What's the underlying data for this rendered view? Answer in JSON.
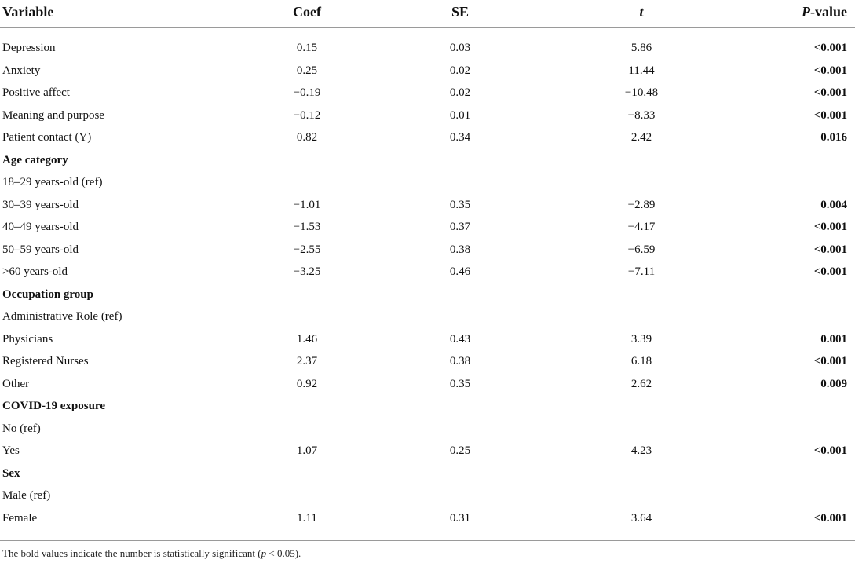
{
  "table": {
    "headers": {
      "variable": "Variable",
      "coef": "Coef",
      "se": "SE",
      "t": "t",
      "p_italic": "P",
      "p_suffix": "-value"
    },
    "rows": [
      {
        "variable": "Depression",
        "coef": "0.15",
        "se": "0.03",
        "t": "5.86",
        "p": "<0.001"
      },
      {
        "variable": "Anxiety",
        "coef": "0.25",
        "se": "0.02",
        "t": "11.44",
        "p": "<0.001"
      },
      {
        "variable": "Positive affect",
        "coef": "−0.19",
        "se": "0.02",
        "t": "−10.48",
        "p": "<0.001"
      },
      {
        "variable": "Meaning and purpose",
        "coef": "−0.12",
        "se": "0.01",
        "t": "−8.33",
        "p": "<0.001"
      },
      {
        "variable": "Patient contact (Y)",
        "coef": "0.82",
        "se": "0.34",
        "t": "2.42",
        "p": "0.016"
      },
      {
        "variable": "Age category",
        "section": true
      },
      {
        "variable": "18–29 years-old (ref)"
      },
      {
        "variable": "30–39 years-old",
        "coef": "−1.01",
        "se": "0.35",
        "t": "−2.89",
        "p": "0.004"
      },
      {
        "variable": "40–49 years-old",
        "coef": "−1.53",
        "se": "0.37",
        "t": "−4.17",
        "p": "<0.001"
      },
      {
        "variable": "50–59 years-old",
        "coef": "−2.55",
        "se": "0.38",
        "t": "−6.59",
        "p": "<0.001"
      },
      {
        "variable": ">60 years-old",
        "coef": "−3.25",
        "se": "0.46",
        "t": "−7.11",
        "p": "<0.001"
      },
      {
        "variable": "Occupation group",
        "section": true
      },
      {
        "variable": "Administrative Role (ref)"
      },
      {
        "variable": "Physicians",
        "coef": "1.46",
        "se": "0.43",
        "t": "3.39",
        "p": "0.001"
      },
      {
        "variable": "Registered Nurses",
        "coef": "2.37",
        "se": "0.38",
        "t": "6.18",
        "p": "<0.001"
      },
      {
        "variable": "Other",
        "coef": "0.92",
        "se": "0.35",
        "t": "2.62",
        "p": "0.009"
      },
      {
        "variable": "COVID-19 exposure",
        "section": true
      },
      {
        "variable": "No (ref)"
      },
      {
        "variable": "Yes",
        "coef": "1.07",
        "se": "0.25",
        "t": "4.23",
        "p": "<0.001"
      },
      {
        "variable": "Sex",
        "section": true
      },
      {
        "variable": "Male (ref)"
      },
      {
        "variable": "Female",
        "coef": "1.11",
        "se": "0.31",
        "t": "3.64",
        "p": "<0.001"
      }
    ]
  },
  "footnote": {
    "prefix": "The bold values indicate the number is statistically significant (",
    "p_italic": "p",
    "condition": " < 0.05)."
  }
}
